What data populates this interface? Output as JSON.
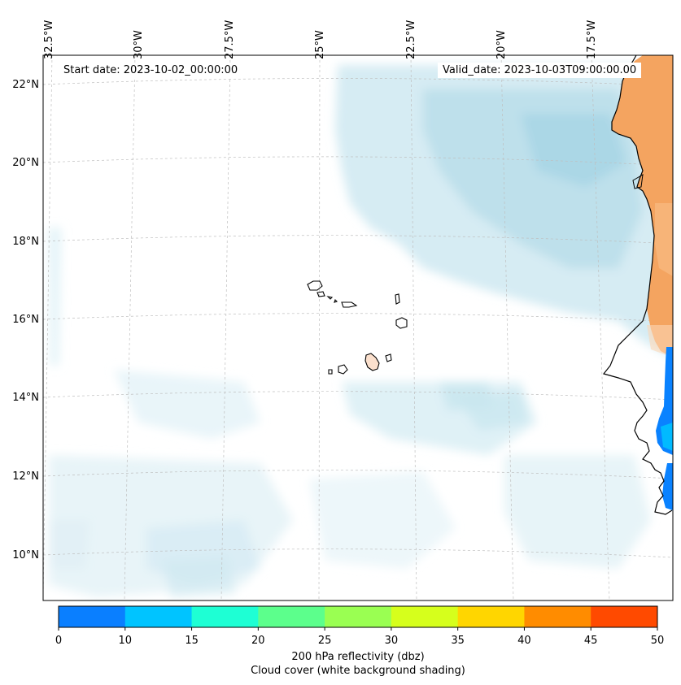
{
  "info": {
    "start_date": "Start date: 2023-10-02_00:00:00",
    "valid_date": "Valid_date: 2023-10-03T09:00:00.00"
  },
  "map": {
    "longitude_labels": [
      "32.5°W",
      "30°W",
      "27.5°W",
      "25°W",
      "22.5°W",
      "20°W",
      "17.5°W"
    ],
    "latitude_labels": [
      "22°N",
      "20°N",
      "18°N",
      "16°N",
      "14°N",
      "12°N",
      "10°N"
    ],
    "land_color": "#f4a460",
    "cloud_color": "#a8d8e6",
    "precip_color": "#0a82ff"
  },
  "colorbar": {
    "ticks": [
      "0",
      "10",
      "15",
      "20",
      "25",
      "30",
      "35",
      "40",
      "45",
      "50"
    ],
    "colors": [
      "#0a7fff",
      "#00c4ff",
      "#1effd4",
      "#5cff8c",
      "#9aff52",
      "#d6ff1c",
      "#ffd600",
      "#ff8c00",
      "#ff4a00"
    ],
    "label_line1": "200 hPa reflectivity (dbz)",
    "label_line2": "Cloud cover (white background shading)"
  }
}
